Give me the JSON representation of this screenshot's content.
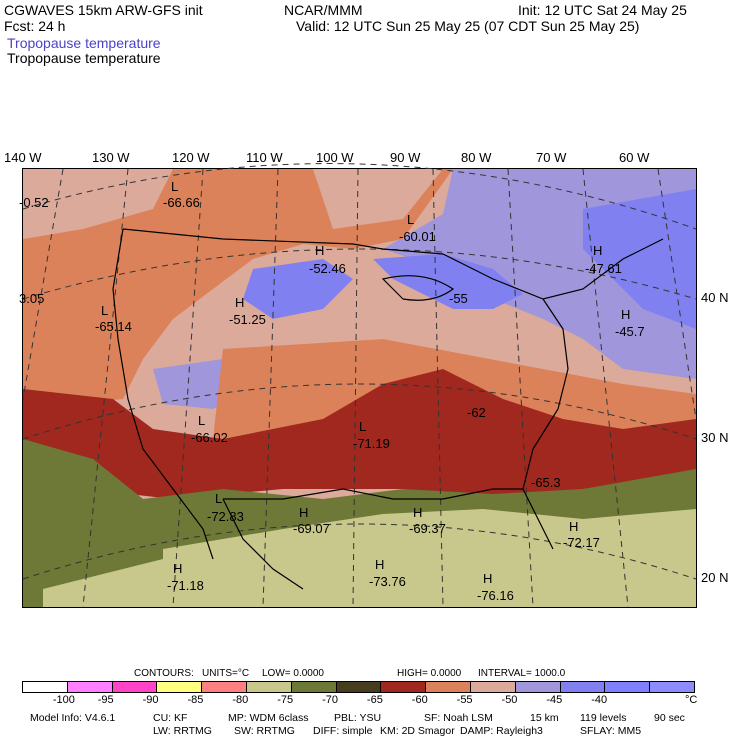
{
  "header": {
    "model": "CGWAVES 15km ARW-GFS init",
    "org": "NCAR/MMM",
    "init": "Init: 12 UTC Sat 24 May 25",
    "fcst": "Fcst:   24 h",
    "valid": "Valid: 12 UTC Sun 25 May 25 (07 CDT Sun 25 May 25)",
    "field1": "Tropopause temperature",
    "field2": "Tropopause temperature"
  },
  "lon_labels": [
    "140 W",
    "130 W",
    "120 W",
    "110 W",
    "100 W",
    "90 W",
    "80 W",
    "70 W",
    "60 W"
  ],
  "lat_labels": [
    "40 N",
    "30 N",
    "20 N"
  ],
  "extrema": [
    {
      "type": "L",
      "value": "-66.66"
    },
    {
      "type": "L",
      "value": "-60.01"
    },
    {
      "type": "H",
      "value": "-52.46"
    },
    {
      "type": "H",
      "value": "-47.61"
    },
    {
      "type": "H",
      "value": "-51.25"
    },
    {
      "type": "L",
      "value": "-65.14"
    },
    {
      "type": "H",
      "value": "-45.7"
    },
    {
      "type": "L",
      "value": "-66.02"
    },
    {
      "type": "L",
      "value": "-71.19"
    },
    {
      "type": "L",
      "value": "-72.83"
    },
    {
      "type": "H",
      "value": "-69.07"
    },
    {
      "type": "H",
      "value": "-69.37"
    },
    {
      "type": "H",
      "value": "-71.18"
    },
    {
      "type": "H",
      "value": "-73.76"
    },
    {
      "type": "H",
      "value": "-76.16"
    },
    {
      "type": "H",
      "value": "-72.17"
    }
  ],
  "edge_values": [
    "-0.52",
    "3.05",
    "-55",
    "-62",
    "-65.3"
  ],
  "contours": {
    "label": "CONTOURS:",
    "units": "UNITS=°C",
    "low": "LOW=  0.0000",
    "high": "HIGH=  0.0000",
    "interval": "INTERVAL=   1000.0"
  },
  "colorbar": {
    "colors": [
      "#ffffff",
      "#ff80ff",
      "#ff44c8",
      "#ffff80",
      "#ff8080",
      "#c8c88c",
      "#6e7837",
      "#463c1e",
      "#a0281e",
      "#dc825a",
      "#dcaa9b",
      "#a096dc",
      "#8080f0",
      "#8080ff",
      "#8c8cff"
    ],
    "labels": [
      "-100",
      "-95",
      "-90",
      "-85",
      "-80",
      "-75",
      "-70",
      "-65",
      "-60",
      "-55",
      "-50",
      "-45",
      "-40",
      "°C"
    ]
  },
  "footer": {
    "line1": [
      "Model Info: V4.6.1",
      "CU: KF",
      "MP: WDM 6class",
      "PBL: YSU",
      "SF: Noah LSM",
      "15 km",
      "119 levels",
      "90 sec"
    ],
    "line2": [
      "LW: RRTMG",
      "SW: RRTMG",
      "DIFF: simple",
      "KM: 2D Smagor",
      "DAMP: Rayleigh3",
      "SFLAY: MM5"
    ]
  }
}
